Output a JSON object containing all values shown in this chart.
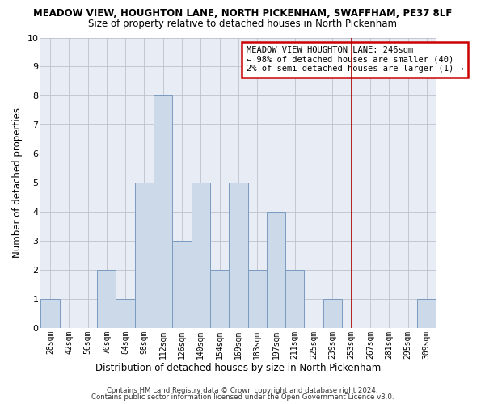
{
  "title": "MEADOW VIEW, HOUGHTON LANE, NORTH PICKENHAM, SWAFFHAM, PE37 8LF",
  "subtitle": "Size of property relative to detached houses in North Pickenham",
  "xlabel": "Distribution of detached houses by size in North Pickenham",
  "ylabel": "Number of detached properties",
  "bin_labels": [
    "28sqm",
    "42sqm",
    "56sqm",
    "70sqm",
    "84sqm",
    "98sqm",
    "112sqm",
    "126sqm",
    "140sqm",
    "154sqm",
    "169sqm",
    "183sqm",
    "197sqm",
    "211sqm",
    "225sqm",
    "239sqm",
    "253sqm",
    "267sqm",
    "281sqm",
    "295sqm",
    "309sqm"
  ],
  "bar_values": [
    1,
    0,
    0,
    2,
    1,
    5,
    8,
    3,
    5,
    2,
    5,
    2,
    4,
    2,
    0,
    1,
    0,
    0,
    0,
    0,
    1
  ],
  "bar_color": "#ccd9e8",
  "bar_edge_color": "#7a9bbf",
  "plot_bg_color": "#e8ecf4",
  "grid_color": "#c0c0d0",
  "vline_index": 16,
  "vline_color": "#aa0000",
  "annotation_text": "MEADOW VIEW HOUGHTON LANE: 246sqm\n← 98% of detached houses are smaller (40)\n2% of semi-detached houses are larger (1) →",
  "annotation_box_color": "#ffffff",
  "annotation_box_edge": "#cc0000",
  "ylim": [
    0,
    10
  ],
  "yticks": [
    0,
    1,
    2,
    3,
    4,
    5,
    6,
    7,
    8,
    9,
    10
  ],
  "footer1": "Contains HM Land Registry data © Crown copyright and database right 2024.",
  "footer2": "Contains public sector information licensed under the Open Government Licence v3.0."
}
